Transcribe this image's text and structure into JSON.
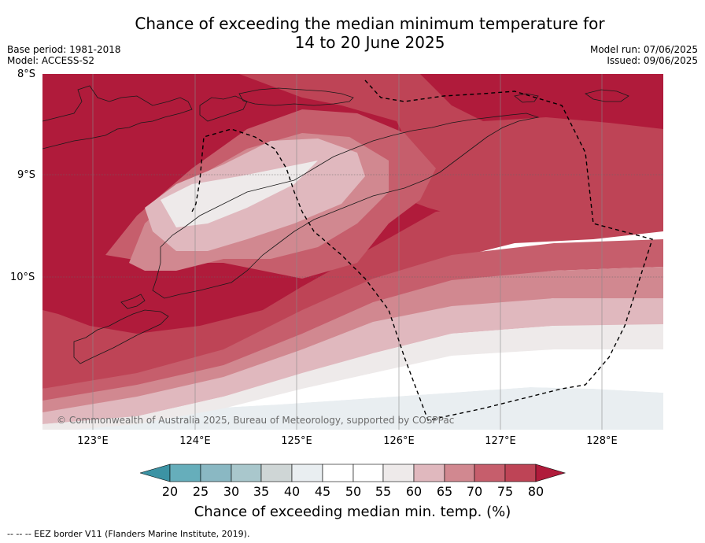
{
  "title": {
    "line1": "Chance of exceeding the median minimum temperature for",
    "line2": "14 to 20 June 2025"
  },
  "meta": {
    "base_period": "Base period: 1981-2018",
    "model": "Model: ACCESS-S2",
    "model_run": "Model run: 07/06/2025",
    "issued": "Issued: 09/06/2025"
  },
  "map": {
    "lat_labels": [
      "8°S",
      "9°S",
      "10°S"
    ],
    "lon_labels": [
      "123°E",
      "124°E",
      "125°E",
      "126°E",
      "127°E",
      "128°E"
    ],
    "credit": "© Commonwealth of Australia 2025, Bureau of Meteorology, supported by COSPPac"
  },
  "legend": {
    "ticks": [
      "20",
      "25",
      "30",
      "35",
      "40",
      "45",
      "50",
      "55",
      "60",
      "65",
      "70",
      "75",
      "80"
    ],
    "colors": {
      "below_20": "#3c93a4",
      "20_25": "#66aebb",
      "25_30": "#8ab8c3",
      "30_35": "#a9c7cc",
      "35_40": "#cfd6d6",
      "40_45": "#e9eef1",
      "45_50": "#ffffff",
      "50_55": "#ffffff",
      "55_60": "#eeeaea",
      "60_65": "#e0b8be",
      "65_70": "#d18890",
      "70_75": "#c65e6c",
      "75_80": "#be4456",
      "above_80": "#b01b3b"
    },
    "title": "Chance of exceeding median min. temp. (%)"
  },
  "footer": "--  --  -- EEZ border V11 (Flanders Marine Institute, 2019)."
}
